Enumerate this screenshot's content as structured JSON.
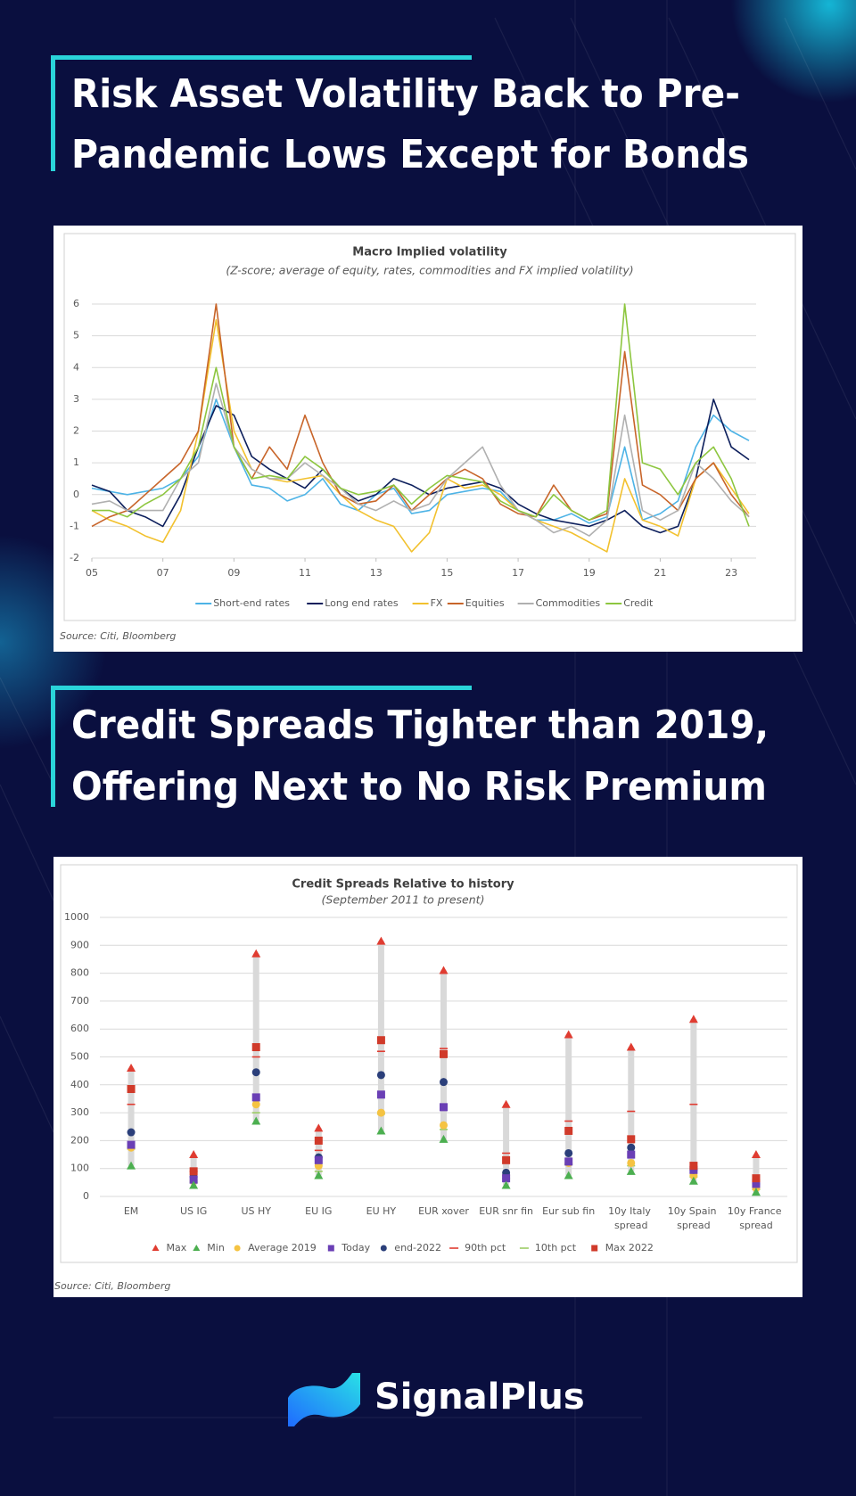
{
  "headings": [
    {
      "lines": [
        "Risk Asset Volatility Back to Pre-",
        "Pandemic Lows Except for Bonds"
      ]
    },
    {
      "lines": [
        "Credit Spreads Tighter than 2019,",
        "Offering Next to No Risk Premium"
      ]
    }
  ],
  "brand": "SignalPlus",
  "chart_data": [
    {
      "type": "line",
      "title": "Macro Implied volatility",
      "subtitle": "(Z-score; average of equity, rates, commodities and FX implied volatility)",
      "source": "Source: Citi, Bloomberg",
      "x": [
        2005,
        2005.5,
        2006,
        2006.5,
        2007,
        2007.5,
        2008,
        2008.5,
        2009,
        2009.5,
        2010,
        2010.5,
        2011,
        2011.5,
        2012,
        2012.5,
        2013,
        2013.5,
        2014,
        2014.5,
        2015,
        2015.5,
        2016,
        2016.5,
        2017,
        2017.5,
        2018,
        2018.5,
        2019,
        2019.5,
        2020,
        2020.5,
        2021,
        2021.5,
        2022,
        2022.5,
        2023,
        2023.5
      ],
      "xlim": [
        2005,
        2023.7
      ],
      "xticks": [
        {
          "value": 2005,
          "label": "05"
        },
        {
          "value": 2007,
          "label": "07"
        },
        {
          "value": 2009,
          "label": "09"
        },
        {
          "value": 2011,
          "label": "11"
        },
        {
          "value": 2013,
          "label": "13"
        },
        {
          "value": 2015,
          "label": "15"
        },
        {
          "value": 2017,
          "label": "17"
        },
        {
          "value": 2019,
          "label": "19"
        },
        {
          "value": 2021,
          "label": "21"
        },
        {
          "value": 2023,
          "label": "23"
        }
      ],
      "ylim": [
        -2,
        6
      ],
      "yticks": [
        -2,
        -1,
        0,
        1,
        2,
        3,
        4,
        5,
        6
      ],
      "grid": true,
      "legend": "bottom",
      "series": [
        {
          "name": "Short-end rates",
          "color": "#4db3e6",
          "values": [
            0.2,
            0.1,
            0,
            0.1,
            0.2,
            0.5,
            1.2,
            3,
            1.5,
            0.3,
            0.2,
            -0.2,
            0,
            0.5,
            -0.3,
            -0.5,
            0,
            0.2,
            -0.6,
            -0.5,
            0,
            0.1,
            0.2,
            0.1,
            -0.5,
            -0.8,
            -0.8,
            -0.6,
            -0.9,
            -0.7,
            1.5,
            -0.8,
            -0.6,
            -0.2,
            1.5,
            2.5,
            2,
            1.7
          ]
        },
        {
          "name": "Long end rates",
          "color": "#0d1f5c",
          "values": [
            0.3,
            0.1,
            -0.5,
            -0.7,
            -1,
            0,
            1.5,
            2.8,
            2.5,
            1.2,
            0.8,
            0.5,
            0.2,
            0.8,
            0.2,
            -0.2,
            0,
            0.5,
            0.3,
            0,
            0.2,
            0.3,
            0.4,
            0.2,
            -0.3,
            -0.6,
            -0.8,
            -0.9,
            -1,
            -0.8,
            -0.5,
            -1,
            -1.2,
            -1,
            0.5,
            3,
            1.5,
            1.1
          ]
        },
        {
          "name": "FX",
          "color": "#f2c12e",
          "values": [
            -0.5,
            -0.8,
            -1,
            -1.3,
            -1.5,
            -0.5,
            2,
            5.5,
            2,
            0.8,
            0.5,
            0.4,
            0.5,
            0.6,
            0,
            -0.5,
            -0.8,
            -1,
            -1.8,
            -1.2,
            0.5,
            0.2,
            0.3,
            0,
            -0.5,
            -0.8,
            -1,
            -1.2,
            -1.5,
            -1.8,
            0.5,
            -0.8,
            -1,
            -1.3,
            0.5,
            1,
            0.2,
            -0.6
          ]
        },
        {
          "name": "Equities",
          "color": "#c8652a",
          "values": [
            -1,
            -0.7,
            -0.5,
            0,
            0.5,
            1,
            2,
            6,
            1.5,
            0.5,
            1.5,
            0.8,
            2.5,
            1,
            0,
            -0.3,
            -0.2,
            0.3,
            -0.5,
            0,
            0.5,
            0.8,
            0.5,
            -0.3,
            -0.6,
            -0.7,
            0.3,
            -0.5,
            -0.8,
            -0.6,
            4.5,
            0.3,
            0,
            -0.5,
            0.5,
            1,
            0,
            -0.7
          ]
        },
        {
          "name": "Commodities",
          "color": "#b0b0b0",
          "values": [
            -0.3,
            -0.2,
            -0.5,
            -0.5,
            -0.5,
            0.5,
            1,
            3.5,
            1.5,
            0.8,
            0.5,
            0.5,
            1,
            0.6,
            0.2,
            -0.3,
            -0.5,
            -0.2,
            -0.5,
            -0.3,
            0.5,
            1,
            1.5,
            0.3,
            -0.5,
            -0.8,
            -1.2,
            -1,
            -1.3,
            -0.8,
            2.5,
            -0.5,
            -0.8,
            -0.5,
            1,
            0.5,
            -0.2,
            -0.7
          ]
        },
        {
          "name": "Credit",
          "color": "#8dc63f",
          "values": [
            -0.5,
            -0.5,
            -0.7,
            -0.3,
            0,
            0.5,
            1.5,
            4,
            1.5,
            0.5,
            0.6,
            0.5,
            1.2,
            0.8,
            0.2,
            0,
            0.1,
            0.3,
            -0.3,
            0.2,
            0.6,
            0.5,
            0.4,
            -0.2,
            -0.5,
            -0.7,
            0,
            -0.5,
            -0.8,
            -0.5,
            6,
            1,
            0.8,
            0,
            1,
            1.5,
            0.5,
            -1
          ]
        }
      ]
    },
    {
      "type": "dot",
      "title": "Credit Spreads Relative to history",
      "subtitle": "(September 2011 to present)",
      "source": "Source: Citi, Bloomberg",
      "categories": [
        "EM",
        "US IG",
        "US HY",
        "EU IG",
        "EU HY",
        "EUR xover",
        "EUR snr fin",
        "Eur sub fin",
        "10y Italy spread",
        "10y Spain spread",
        "10y France spread"
      ],
      "ylim": [
        0,
        1000
      ],
      "yticks": [
        0,
        100,
        200,
        300,
        400,
        500,
        600,
        700,
        800,
        900,
        1000
      ],
      "grid": true,
      "legend": "bottom",
      "range_color": "#d9d9d9",
      "series": [
        {
          "name": "Max",
          "color": "#e03c31",
          "marker": "triangle",
          "values": [
            460,
            150,
            870,
            245,
            915,
            810,
            330,
            580,
            535,
            635,
            150
          ]
        },
        {
          "name": "Min",
          "color": "#4caf50",
          "marker": "triangle",
          "values": [
            110,
            40,
            270,
            75,
            235,
            205,
            40,
            75,
            90,
            55,
            15
          ]
        },
        {
          "name": "Average 2019",
          "color": "#f5c342",
          "marker": "circle",
          "values": [
            175,
            55,
            330,
            110,
            300,
            255,
            75,
            120,
            120,
            75,
            30
          ]
        },
        {
          "name": "Today",
          "color": "#6a3fb5",
          "marker": "square",
          "values": [
            185,
            60,
            355,
            130,
            365,
            320,
            65,
            125,
            150,
            95,
            45
          ]
        },
        {
          "name": "end-2022",
          "color": "#2b3f7a",
          "marker": "circle",
          "values": [
            230,
            70,
            445,
            140,
            435,
            410,
            85,
            155,
            175,
            95,
            45
          ]
        },
        {
          "name": "90th pct",
          "color": "#e03c31",
          "marker": "dash",
          "values": [
            330,
            90,
            500,
            165,
            520,
            530,
            155,
            270,
            305,
            330,
            60
          ]
        },
        {
          "name": "10th pct",
          "color": "#9ccc65",
          "marker": "dash",
          "values": [
            170,
            50,
            300,
            90,
            295,
            240,
            65,
            115,
            110,
            70,
            25
          ]
        },
        {
          "name": "Max 2022",
          "color": "#d03a2a",
          "marker": "square",
          "values": [
            385,
            90,
            535,
            200,
            560,
            510,
            130,
            235,
            205,
            110,
            65
          ]
        }
      ]
    }
  ]
}
